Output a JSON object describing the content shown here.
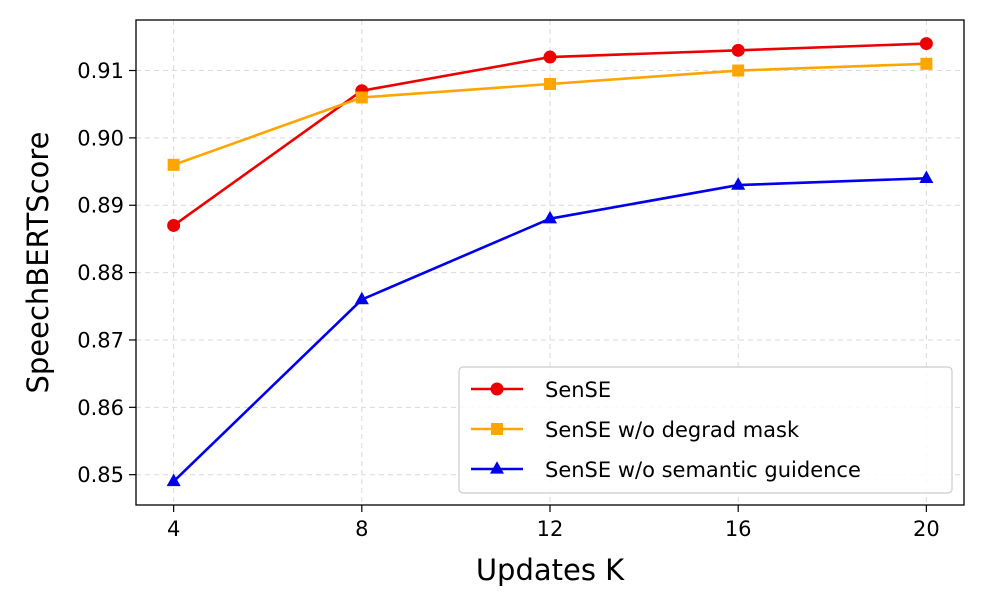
{
  "chart_data": {
    "type": "line",
    "title": "",
    "xlabel": "Updates K",
    "ylabel": "SpeechBERTScore",
    "x": [
      4,
      8,
      12,
      16,
      20
    ],
    "x_tick_labels": [
      "4",
      "8",
      "12",
      "16",
      "20"
    ],
    "y_ticks": [
      0.85,
      0.86,
      0.87,
      0.88,
      0.89,
      0.9,
      0.91
    ],
    "y_tick_labels": [
      "0.85",
      "0.86",
      "0.87",
      "0.88",
      "0.89",
      "0.90",
      "0.91"
    ],
    "xlim": [
      3.2,
      20.8
    ],
    "ylim": [
      0.8455,
      0.9175
    ],
    "grid": true,
    "legend_position": "lower-right",
    "series": [
      {
        "name": "SenSE",
        "color": "#ee0000",
        "marker": "circle",
        "values": [
          0.887,
          0.907,
          0.912,
          0.913,
          0.914
        ]
      },
      {
        "name": "SenSE w/o degrad mask",
        "color": "#ffa500",
        "marker": "square",
        "values": [
          0.896,
          0.906,
          0.908,
          0.91,
          0.911
        ]
      },
      {
        "name": "SenSE w/o semantic guidence",
        "color": "#0000ee",
        "marker": "triangle",
        "values": [
          0.849,
          0.876,
          0.888,
          0.893,
          0.894
        ]
      }
    ]
  }
}
